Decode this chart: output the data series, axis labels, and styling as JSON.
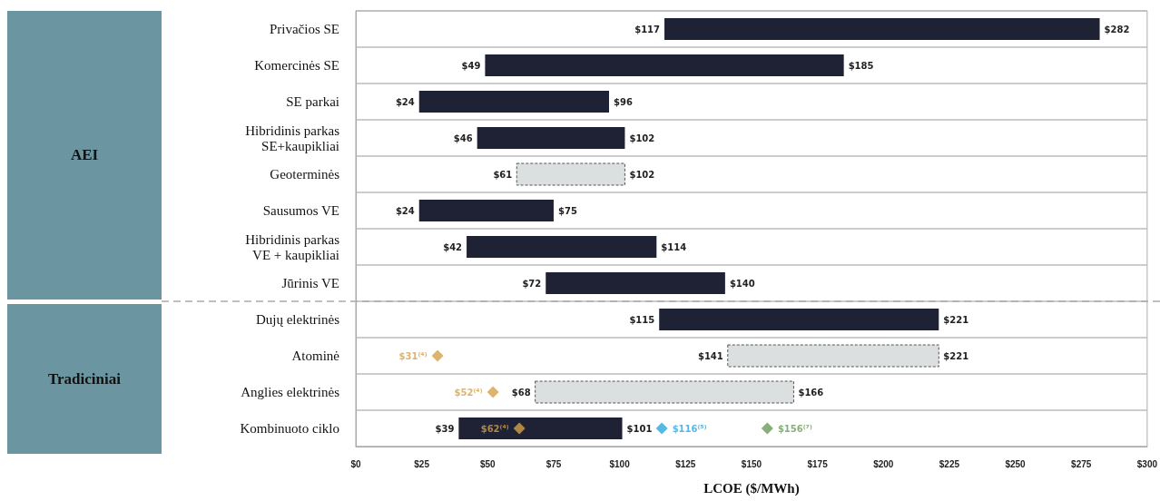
{
  "chart_data": {
    "type": "bar",
    "orientation": "horizontal",
    "xlabel": "LCOE ($/MWh)",
    "categories": [
      "Privačios SE",
      "Komercinės SE",
      "SE parkai",
      "Hibridinis parkas\nSE+kaupikliai",
      "Geoterminės",
      "Sausumos VE",
      "Hibridinis parkas\nVE + kaupikliai",
      "Jūrinis VE",
      "Dujų elektrinės",
      "Atominė",
      "Anglies elektrinės",
      "Kombinuoto ciklo"
    ],
    "series": [
      {
        "color": "#1f2235",
        "base": [
          117,
          49,
          24,
          46,
          null,
          24,
          42,
          72,
          115,
          null,
          null,
          39
        ],
        "values": [
          165,
          136,
          72,
          56,
          null,
          51,
          72,
          68,
          106,
          null,
          null,
          62
        ],
        "value_labels": [
          [
            "$117",
            "$282"
          ],
          [
            "$49",
            "$185"
          ],
          [
            "$24",
            "$96"
          ],
          [
            "$46",
            "$102"
          ],
          null,
          [
            "$24",
            "$75"
          ],
          [
            "$42",
            "$114"
          ],
          [
            "$72",
            "$140"
          ],
          [
            "$115",
            "$221"
          ],
          null,
          null,
          [
            "$39",
            "$101"
          ]
        ]
      },
      {
        "color": "#dcdfdf",
        "line_style": "dashed",
        "base": [
          null,
          null,
          null,
          null,
          61,
          null,
          null,
          null,
          null,
          141,
          68,
          null
        ],
        "values": [
          null,
          null,
          null,
          null,
          41,
          null,
          null,
          null,
          null,
          80,
          98,
          null
        ],
        "value_labels": [
          null,
          null,
          null,
          null,
          [
            "$61",
            "$102"
          ],
          null,
          null,
          null,
          null,
          [
            "$141",
            "$221"
          ],
          [
            "$68",
            "$166"
          ],
          null
        ]
      },
      {
        "type": "scatter",
        "color": "#d4a04a",
        "x": [
          "Atominė",
          "Anglies elektrinės",
          "Kombinuoto ciklo"
        ],
        "values": [
          31,
          52,
          62
        ],
        "value_labels": [
          "$31⁽⁴⁾",
          "$52⁽⁴⁾",
          "$62⁽⁴⁾"
        ]
      },
      {
        "type": "scatter",
        "color": "#29a8e0",
        "x": [
          "Kombinuoto ciklo"
        ],
        "values": [
          116
        ],
        "value_labels": [
          "$116⁽⁵⁾"
        ]
      },
      {
        "type": "scatter",
        "color": "#6a9a5a",
        "x": [
          "Kombinuoto ciklo"
        ],
        "values": [
          156
        ],
        "value_labels": [
          "$156⁽⁷⁾"
        ]
      }
    ],
    "marker": "diamond",
    "xlim": [
      0,
      300
    ],
    "xticks": [
      {
        "value": 0,
        "label": "$0"
      },
      {
        "value": 25,
        "label": "$25"
      },
      {
        "value": 50,
        "label": "$50"
      },
      {
        "value": 75,
        "label": "$75"
      },
      {
        "value": 100,
        "label": "$100"
      },
      {
        "value": 125,
        "label": "$125"
      },
      {
        "value": 150,
        "label": "$150"
      },
      {
        "value": 175,
        "label": "$175"
      },
      {
        "value": 200,
        "label": "$200"
      },
      {
        "value": 225,
        "label": "$225"
      },
      {
        "value": 250,
        "label": "$250"
      },
      {
        "value": 275,
        "label": "$275"
      },
      {
        "value": 300,
        "label": "$300"
      }
    ],
    "annotations": [
      "AEI",
      "Tradiciniai"
    ],
    "ref_lines": [
      {
        "axis": "y",
        "value": "Dujų elektrinės",
        "color": "#aaaaaa",
        "line_style": "dashed"
      }
    ],
    "grid": "y"
  }
}
